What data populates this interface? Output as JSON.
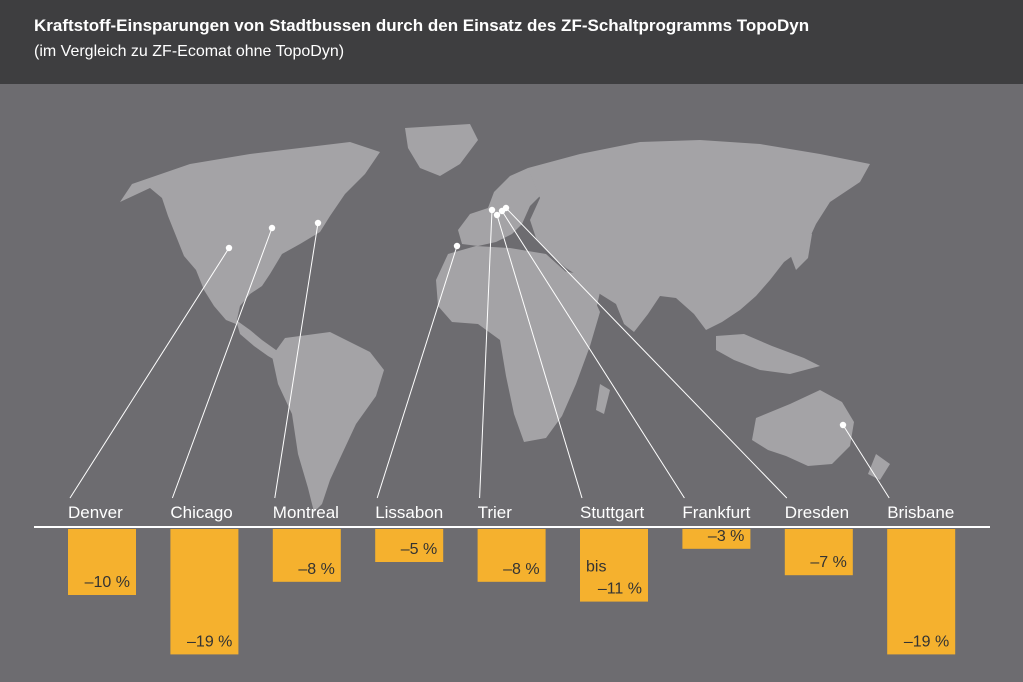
{
  "header": {
    "title": "Kraftstoff-Einsparungen von Stadtbussen durch den Einsatz des ZF-Schaltprogramms TopoDyn",
    "subtitle": "(im Vergleich zu ZF-Ecomat ohne TopoDyn)"
  },
  "colors": {
    "header_bg": "#3e3e40",
    "background": "#6d6c70",
    "land": "#a4a3a6",
    "bar": "#f5b12e",
    "text": "#ffffff"
  },
  "chart_data": {
    "type": "bar",
    "title": "Kraftstoff-Einsparungen von Stadtbussen durch den Einsatz des ZF-Schaltprogramms TopoDyn",
    "subtitle": "(im Vergleich zu ZF-Ecomat ohne TopoDyn)",
    "categories": [
      "Denver",
      "Chicago",
      "Montreal",
      "Lissabon",
      "Trier",
      "Stuttgart",
      "Frankfurt",
      "Dresden",
      "Brisbane"
    ],
    "values": [
      -10,
      -19,
      -8,
      -5,
      -8,
      -11,
      -3,
      -7,
      -19
    ],
    "value_labels": [
      "–10 %",
      "–19 %",
      "–8 %",
      "–5 %",
      "–8 %",
      "bis –11 %",
      "–3 %",
      "–7 %",
      "–19 %"
    ],
    "unit": "%",
    "ylim": [
      -19,
      0
    ],
    "grid": false,
    "legend": "none",
    "background": "world map with city markers"
  }
}
